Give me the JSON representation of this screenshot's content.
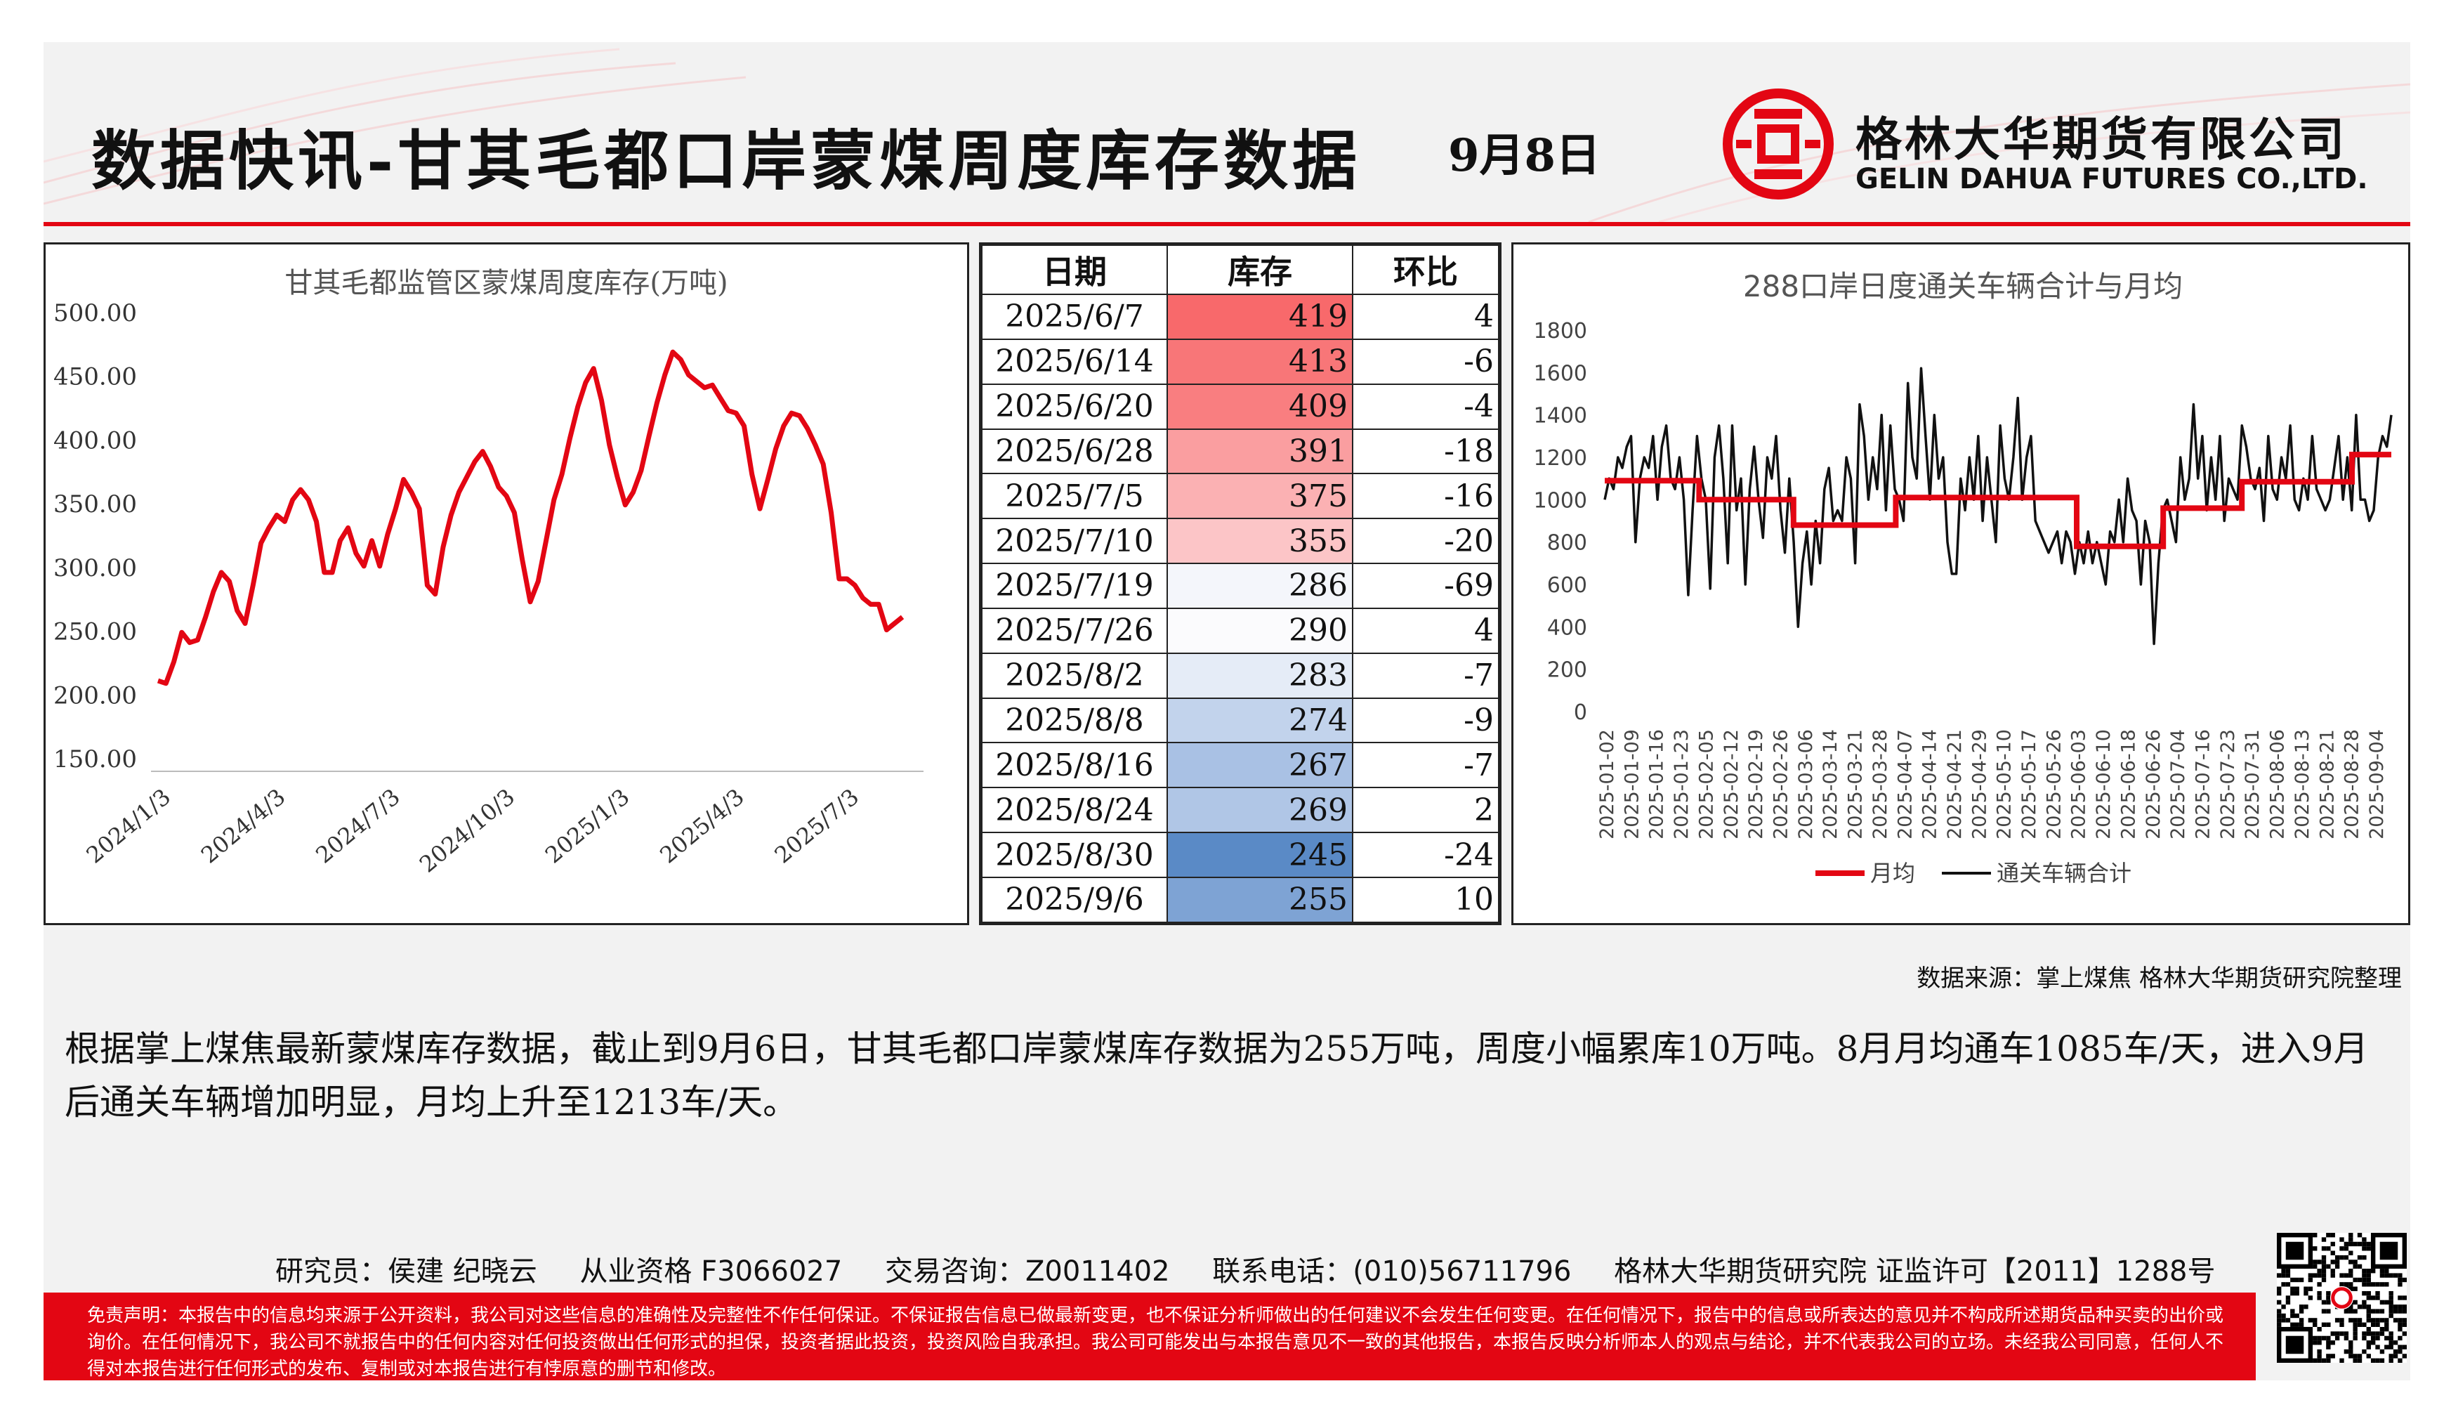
{
  "header": {
    "title": "数据快讯-甘其毛都口岸蒙煤周度库存数据",
    "date": "9月8日",
    "company_cn": "格林大华期货有限公司",
    "company_en": "GELIN DAHUA FUTURES CO.,LTD.",
    "accent_color": "#e30613"
  },
  "table": {
    "headers": [
      "日期",
      "库存",
      "环比"
    ],
    "rows": [
      {
        "date": "2025/6/7",
        "stock": "419",
        "change": "4",
        "color": "#f8696b"
      },
      {
        "date": "2025/6/14",
        "stock": "413",
        "change": "-6",
        "color": "#f87678"
      },
      {
        "date": "2025/6/20",
        "stock": "409",
        "change": "-4",
        "color": "#f97e80"
      },
      {
        "date": "2025/6/28",
        "stock": "391",
        "change": "-18",
        "color": "#fa9ea0"
      },
      {
        "date": "2025/7/5",
        "stock": "375",
        "change": "-16",
        "color": "#fbb1b3"
      },
      {
        "date": "2025/7/10",
        "stock": "355",
        "change": "-20",
        "color": "#fcc5c7"
      },
      {
        "date": "2025/7/19",
        "stock": "286",
        "change": "-69",
        "color": "#f4f6fb"
      },
      {
        "date": "2025/7/26",
        "stock": "290",
        "change": "4",
        "color": "#fbfbfd"
      },
      {
        "date": "2025/8/2",
        "stock": "283",
        "change": "-7",
        "color": "#e5ecf7"
      },
      {
        "date": "2025/8/8",
        "stock": "274",
        "change": "-9",
        "color": "#c2d3ec"
      },
      {
        "date": "2025/8/16",
        "stock": "267",
        "change": "-7",
        "color": "#a9c1e4"
      },
      {
        "date": "2025/8/24",
        "stock": "269",
        "change": "2",
        "color": "#b0c6e6"
      },
      {
        "date": "2025/8/30",
        "stock": "245",
        "change": "-24",
        "color": "#5a8ac6"
      },
      {
        "date": "2025/9/6",
        "stock": "255",
        "change": "10",
        "color": "#7ea3d4"
      }
    ]
  },
  "source": "数据来源：掌上煤焦 格林大华期货研究院整理",
  "body_text": "根据掌上煤焦最新蒙煤库存数据，截止到9月6日，甘其毛都口岸蒙煤库存数据为255万吨，周度小幅累库10万吨。8月月均通车1085车/天，进入9月后通关车辆增加明显，月均上升至1213车/天。",
  "contact": {
    "researchers": "研究员：侯建 纪晓云",
    "license": "从业资格 F3066027",
    "consult": "交易咨询：Z0011402",
    "phone": "联系电话：(010)56711796",
    "institute": "格林大华期货研究院 证监许可【2011】1288号"
  },
  "disclaimer": "免责声明：本报告中的信息均来源于公开资料，我公司对这些信息的准确性及完整性不作任何保证。不保证报告信息已做最新变更，也不保证分析师做出的任何建议不会发生任何变更。在任何情况下，报告中的信息或所表达的意见并不构成所述期货品种买卖的出价或询价。在任何情况下，我公司不就报告中的任何内容对任何投资做出任何形式的担保，投资者据此投资，投资风险自我承担。我公司可能发出与本报告意见不一致的其他报告，本报告反映分析师本人的观点与结论，并不代表我公司的立场。未经我公司同意，任何人不得对本报告进行任何形式的发布、复制或对本报告进行有悖原意的删节和修改。",
  "chart_data": [
    {
      "type": "line",
      "title": "甘其毛都监管区蒙煤周度库存(万吨)",
      "ylim": [
        150,
        500
      ],
      "yticks": [
        "500.00",
        "450.00",
        "400.00",
        "350.00",
        "300.00",
        "250.00",
        "200.00",
        "150.00"
      ],
      "xticks": [
        "2024/1/3",
        "2024/4/3",
        "2024/7/3",
        "2024/10/3",
        "2025/1/3",
        "2025/4/3",
        "2025/7/3"
      ],
      "color": "#e30613",
      "values": [
        210,
        208,
        225,
        248,
        240,
        242,
        260,
        280,
        295,
        288,
        265,
        255,
        285,
        318,
        330,
        340,
        335,
        352,
        360,
        352,
        335,
        295,
        295,
        320,
        330,
        310,
        300,
        320,
        300,
        325,
        345,
        368,
        358,
        345,
        285,
        278,
        315,
        340,
        358,
        370,
        382,
        390,
        378,
        362,
        355,
        342,
        305,
        272,
        288,
        320,
        352,
        372,
        400,
        425,
        444,
        455,
        430,
        395,
        370,
        348,
        358,
        375,
        402,
        428,
        450,
        468,
        462,
        450,
        445,
        440,
        442,
        432,
        422,
        420,
        410,
        372,
        345,
        368,
        392,
        410,
        420,
        418,
        408,
        395,
        380,
        342,
        290,
        290,
        285,
        275,
        270,
        270,
        250,
        255,
        260
      ]
    },
    {
      "type": "line",
      "title": "288口岸日度通关车辆合计与月均",
      "ylim": [
        0,
        1800
      ],
      "yticks": [
        "1800",
        "1600",
        "1400",
        "1200",
        "1000",
        "800",
        "600",
        "400",
        "200",
        "0"
      ],
      "xticks": [
        "2025-01-02",
        "2025-01-09",
        "2025-01-16",
        "2025-01-23",
        "2025-02-05",
        "2025-02-12",
        "2025-02-19",
        "2025-02-26",
        "2025-03-06",
        "2025-03-14",
        "2025-03-21",
        "2025-03-28",
        "2025-04-07",
        "2025-04-14",
        "2025-04-21",
        "2025-04-29",
        "2025-05-10",
        "2025-05-17",
        "2025-05-26",
        "2025-06-03",
        "2025-06-10",
        "2025-06-18",
        "2025-06-26",
        "2025-07-04",
        "2025-07-16",
        "2025-07-23",
        "2025-07-31",
        "2025-08-06",
        "2025-08-13",
        "2025-08-21",
        "2025-08-28",
        "2025-09-04"
      ],
      "legend": [
        "月均",
        "通关车辆合计"
      ],
      "legend_position": "bottom",
      "series": [
        {
          "name": "月均",
          "color": "#e30613",
          "steps": [
            {
              "from": 0,
              "to": 0.12,
              "value": 1090
            },
            {
              "from": 0.12,
              "to": 0.24,
              "value": 1000
            },
            {
              "from": 0.24,
              "to": 0.37,
              "value": 880
            },
            {
              "from": 0.37,
              "to": 0.6,
              "value": 1010
            },
            {
              "from": 0.6,
              "to": 0.71,
              "value": 780
            },
            {
              "from": 0.71,
              "to": 0.81,
              "value": 960
            },
            {
              "from": 0.81,
              "to": 0.95,
              "value": 1085
            },
            {
              "from": 0.95,
              "to": 1.0,
              "value": 1213
            }
          ]
        },
        {
          "name": "通关车辆合计",
          "color": "#111111",
          "values": [
            1000,
            1100,
            1050,
            1200,
            1150,
            1250,
            1300,
            800,
            1100,
            1200,
            1150,
            1300,
            1000,
            1250,
            1350,
            1100,
            1050,
            1200,
            1000,
            550,
            950,
            1300,
            1100,
            1000,
            580,
            1200,
            1350,
            1100,
            700,
            1350,
            950,
            1100,
            600,
            1050,
            1250,
            1000,
            820,
            1200,
            1100,
            1300,
            950,
            750,
            1100,
            800,
            400,
            700,
            850,
            600,
            900,
            700,
            1050,
            1150,
            900,
            950,
            900,
            1200,
            1100,
            700,
            1450,
            1300,
            1000,
            1200,
            1050,
            1400,
            950,
            1350,
            1050,
            1000,
            900,
            1550,
            1200,
            1100,
            1620,
            1300,
            1000,
            1400,
            1100,
            1200,
            800,
            650,
            650,
            1100,
            950,
            1200,
            1000,
            1300,
            900,
            1200,
            1000,
            800,
            1350,
            1100,
            1000,
            1200,
            1480,
            1000,
            1200,
            1300,
            900,
            850,
            800,
            750,
            800,
            850,
            700,
            850,
            800,
            650,
            800,
            700,
            850,
            700,
            800,
            700,
            600,
            850,
            800,
            1000,
            800,
            1100,
            950,
            900,
            600,
            900,
            800,
            320,
            700,
            950,
            1000,
            900,
            800,
            1200,
            1000,
            1100,
            1450,
            1100,
            1300,
            950,
            1200,
            1000,
            1300,
            900,
            1100,
            1050,
            1000,
            1350,
            1250,
            1100,
            1050,
            1150,
            900,
            1300,
            1050,
            1000,
            1200,
            1100,
            1350,
            1000,
            950,
            1100,
            1000,
            1300,
            1050,
            1000,
            950,
            1000,
            1150,
            1300,
            1000,
            1200,
            950,
            1400,
            1000,
            1000,
            900,
            950,
            1200,
            1300,
            1250,
            1400
          ]
        }
      ]
    }
  ]
}
